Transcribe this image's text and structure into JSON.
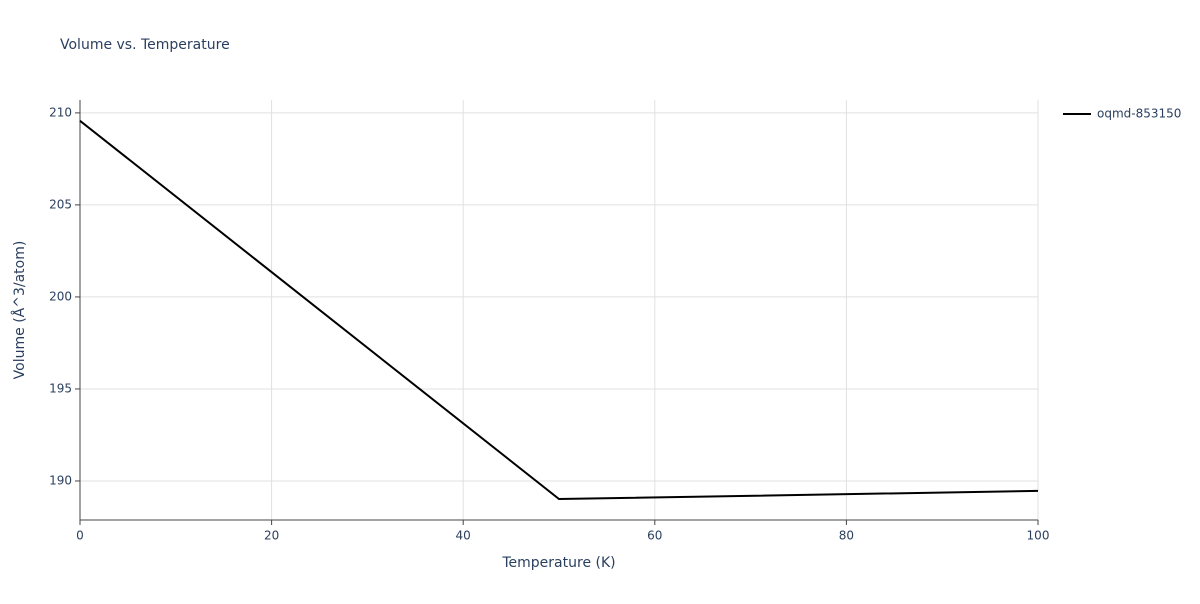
{
  "chart_data": {
    "type": "line",
    "title": "Volume vs. Temperature",
    "x_label": "Temperature (K)",
    "y_label": "Volume (Å^3/atom)",
    "x": [
      0,
      50,
      100
    ],
    "series": [
      {
        "name": "oqmd-853150",
        "color": "#000000",
        "values": [
          209.57,
          189.02,
          189.46
        ]
      }
    ],
    "xlim": [
      0,
      100
    ],
    "xticks": [
      0,
      20,
      40,
      60,
      80,
      100
    ],
    "ylim": [
      187.88,
      210.7
    ],
    "yticks": [
      190,
      195,
      200,
      205,
      210
    ],
    "grid": true,
    "legend": "top-right"
  }
}
